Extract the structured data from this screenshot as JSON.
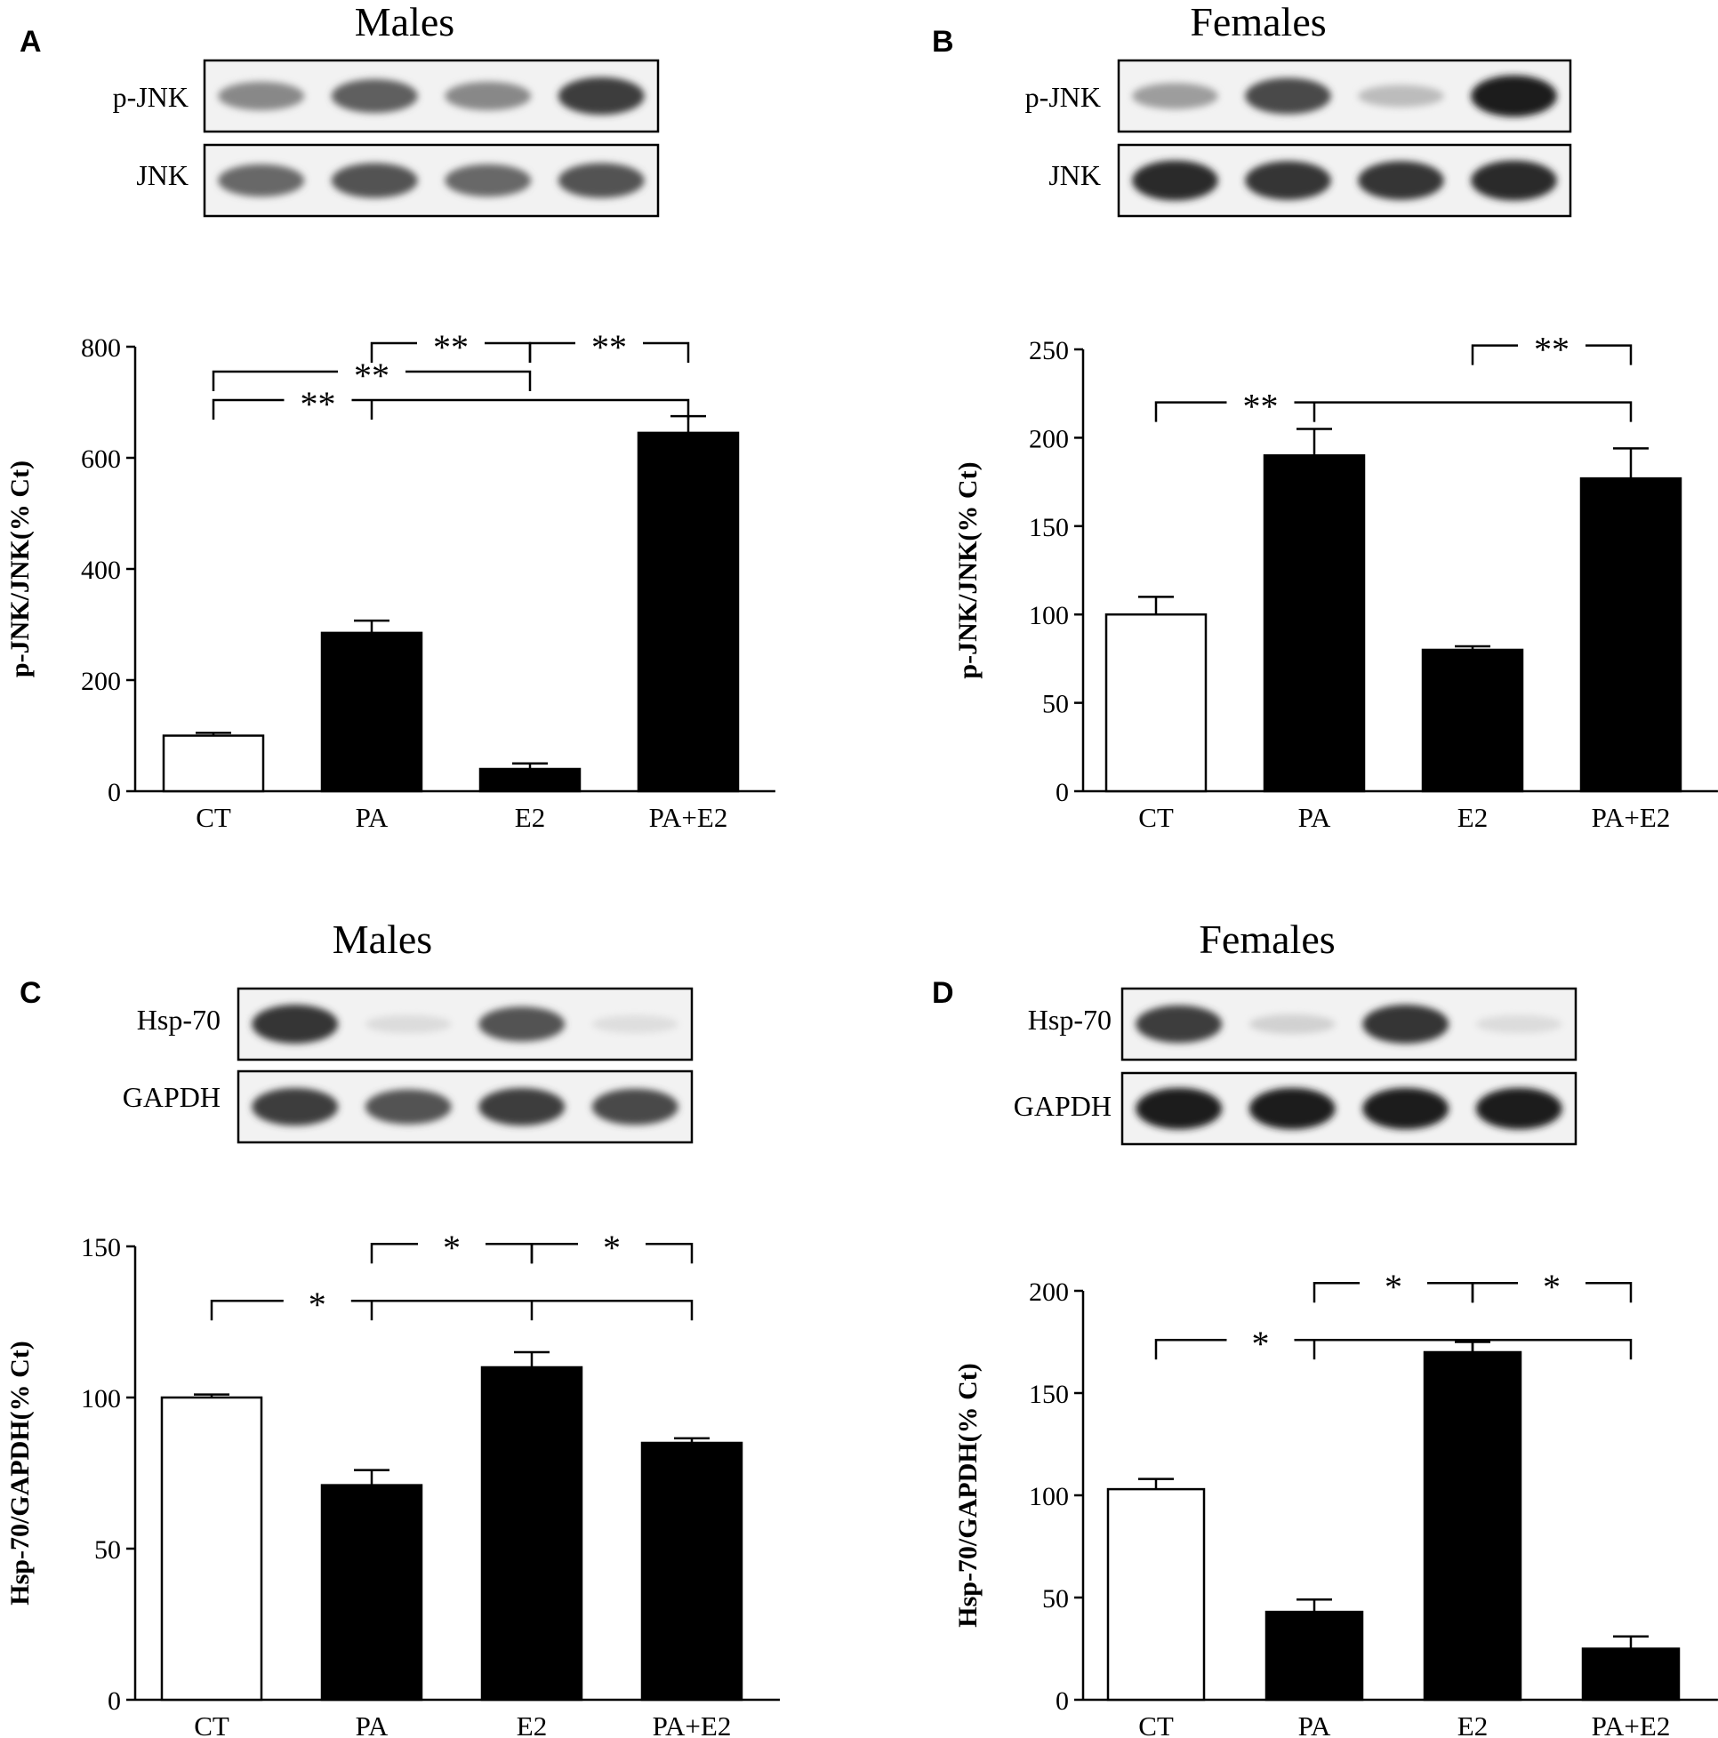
{
  "figure": {
    "panels": [
      {
        "letter": "A",
        "blot": {
          "title": "Males",
          "rows": [
            {
              "label": "p-JNK",
              "lanes": [
                0.45,
                0.65,
                0.45,
                0.8
              ]
            },
            {
              "label": "JNK",
              "lanes": [
                0.6,
                0.7,
                0.6,
                0.7
              ]
            }
          ]
        }
      },
      {
        "letter": "B",
        "blot": {
          "title": "Females",
          "rows": [
            {
              "label": "p-JNK",
              "lanes": [
                0.35,
                0.75,
                0.2,
                0.95
              ]
            },
            {
              "label": "JNK",
              "lanes": [
                0.9,
                0.85,
                0.85,
                0.9
              ]
            }
          ]
        }
      },
      {
        "letter": "C",
        "blot": {
          "title": "Males",
          "rows": [
            {
              "label": "Hsp-70",
              "lanes": [
                0.85,
                0.05,
                0.7,
                0.04
              ]
            },
            {
              "label": "GAPDH",
              "lanes": [
                0.8,
                0.7,
                0.8,
                0.75
              ]
            }
          ]
        }
      },
      {
        "letter": "D",
        "blot": {
          "title": "Females",
          "rows": [
            {
              "label": "Hsp-70",
              "lanes": [
                0.8,
                0.1,
                0.85,
                0.05
              ]
            },
            {
              "label": "GAPDH",
              "lanes": [
                0.95,
                0.95,
                0.95,
                0.95
              ]
            }
          ]
        }
      }
    ]
  },
  "chart_data": [
    {
      "type": "bar",
      "panel": "A",
      "categories": [
        "CT",
        "PA",
        "E2",
        "PA+E2"
      ],
      "values": [
        100,
        285,
        40,
        645
      ],
      "errors": [
        5,
        22,
        10,
        30
      ],
      "fills": [
        "#ffffff",
        "#000000",
        "#000000",
        "#000000"
      ],
      "ylabel": "p-JNK/JNK(% Ct)",
      "ylim": [
        0,
        800
      ],
      "yticks": [
        0,
        200,
        400,
        600,
        800
      ],
      "brackets": [
        {
          "from": 0,
          "to": 2,
          "label": "**"
        },
        {
          "from": 0,
          "to": 3,
          "label": "**",
          "mid": [
            1
          ]
        },
        {
          "from": 1,
          "to": 2,
          "label": "**"
        },
        {
          "from": 2,
          "to": 3,
          "label": "**"
        }
      ]
    },
    {
      "type": "bar",
      "panel": "B",
      "categories": [
        "CT",
        "PA",
        "E2",
        "PA+E2"
      ],
      "values": [
        100,
        190,
        80,
        177
      ],
      "errors": [
        10,
        15,
        2,
        17
      ],
      "fills": [
        "#ffffff",
        "#000000",
        "#000000",
        "#000000"
      ],
      "ylabel": "p-JNK/JNK(% Ct)",
      "ylim": [
        0,
        250
      ],
      "yticks": [
        0,
        50,
        100,
        150,
        200,
        250
      ],
      "brackets": [
        {
          "from": 0,
          "to": 3,
          "label": "**",
          "mid": [
            1
          ]
        },
        {
          "from": 2,
          "to": 3,
          "label": "**"
        }
      ]
    },
    {
      "type": "bar",
      "panel": "C",
      "categories": [
        "CT",
        "PA",
        "E2",
        "PA+E2"
      ],
      "values": [
        100,
        71,
        110,
        85
      ],
      "errors": [
        1,
        5,
        5,
        1.5
      ],
      "fills": [
        "#ffffff",
        "#000000",
        "#000000",
        "#000000"
      ],
      "ylabel": "Hsp-70/GAPDH(% Ct)",
      "ylim": [
        0,
        150
      ],
      "yticks": [
        0,
        50,
        100,
        150
      ],
      "brackets": [
        {
          "from": 0,
          "to": 3,
          "label": "*",
          "mid": [
            1,
            2
          ]
        },
        {
          "from": 1,
          "to": 2,
          "label": "*"
        },
        {
          "from": 2,
          "to": 3,
          "label": "*"
        }
      ]
    },
    {
      "type": "bar",
      "panel": "D",
      "categories": [
        "CT",
        "PA",
        "E2",
        "PA+E2"
      ],
      "values": [
        103,
        43,
        170,
        25
      ],
      "errors": [
        5,
        6,
        5,
        6
      ],
      "fills": [
        "#ffffff",
        "#000000",
        "#000000",
        "#000000"
      ],
      "ylabel": "Hsp-70/GAPDH(% Ct)",
      "ylim": [
        0,
        200
      ],
      "yticks": [
        0,
        50,
        100,
        150,
        200
      ],
      "brackets": [
        {
          "from": 0,
          "to": 3,
          "label": "*",
          "mid": [
            1,
            2
          ]
        },
        {
          "from": 1,
          "to": 2,
          "label": "*"
        },
        {
          "from": 2,
          "to": 3,
          "label": "*"
        }
      ]
    }
  ]
}
